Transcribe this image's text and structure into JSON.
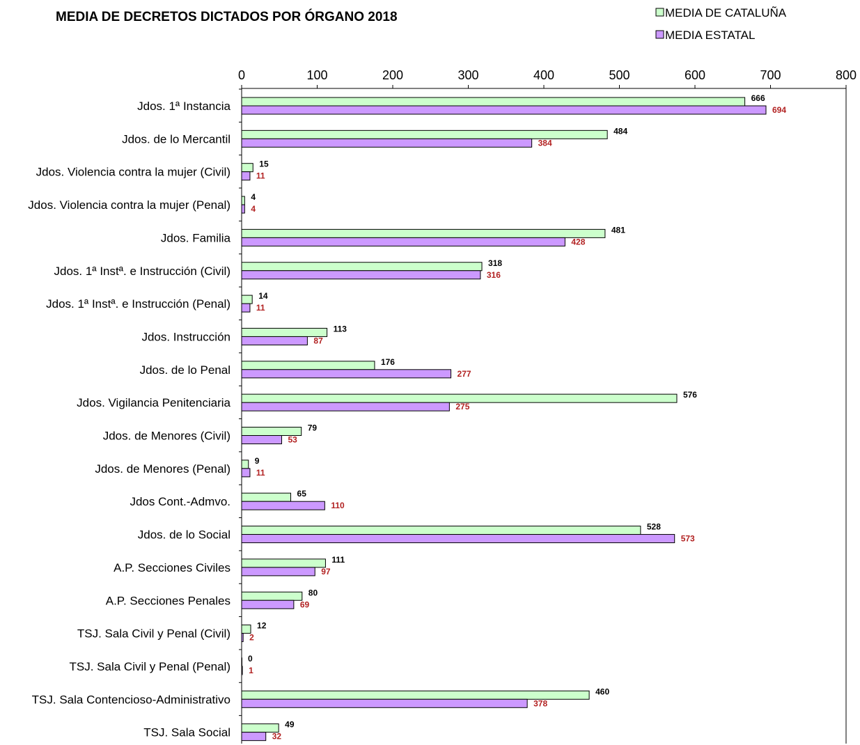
{
  "chart_data": {
    "type": "bar",
    "orientation": "horizontal",
    "title": "MEDIA DE DECRETOS DICTADOS POR ÓRGANO 2018",
    "xlim": [
      0,
      800
    ],
    "xticks": [
      0,
      100,
      200,
      300,
      400,
      500,
      600,
      700,
      800
    ],
    "tick_labels": [
      "0",
      "100",
      "200",
      "300",
      "400",
      "500",
      "600",
      "700",
      "800"
    ],
    "axis_position": "top",
    "grid": false,
    "legend_position": "top-right",
    "categories": [
      "Jdos. 1ª Instancia",
      "Jdos. de lo Mercantil",
      "Jdos. Violencia contra la mujer (Civil)",
      "Jdos. Violencia contra la mujer (Penal)",
      "Jdos. Familia",
      "Jdos. 1ª Instª. e Instrucción (Civil)",
      "Jdos. 1ª Instª. e Instrucción  (Penal)",
      "Jdos. Instrucción",
      "Jdos. de lo Penal",
      "Jdos. Vigilancia Penitenciaria",
      "Jdos. de Menores (Civil)",
      "Jdos. de Menores  (Penal)",
      "Jdos Cont.-Admvo.",
      "Jdos. de lo Social",
      "A.P. Secciones Civiles",
      "A.P. Secciones Penales",
      "TSJ. Sala Civil y Penal (Civil)",
      "TSJ. Sala Civil y Penal (Penal)",
      "TSJ. Sala Contencioso-Administrativo",
      "TSJ. Sala Social"
    ],
    "series": [
      {
        "name": "MEDIA DE CATALUÑA",
        "color": "#ccffcc",
        "label_color": "#000000",
        "values": [
          666,
          484,
          15,
          4,
          481,
          318,
          14,
          113,
          176,
          576,
          79,
          9,
          65,
          528,
          111,
          80,
          12,
          0,
          460,
          49
        ]
      },
      {
        "name": "MEDIA ESTATAL",
        "color": "#cc99ff",
        "label_color": "#b22222",
        "values": [
          694,
          384,
          11,
          4,
          428,
          316,
          11,
          87,
          277,
          275,
          53,
          11,
          110,
          573,
          97,
          69,
          2,
          1,
          378,
          32
        ]
      }
    ]
  }
}
